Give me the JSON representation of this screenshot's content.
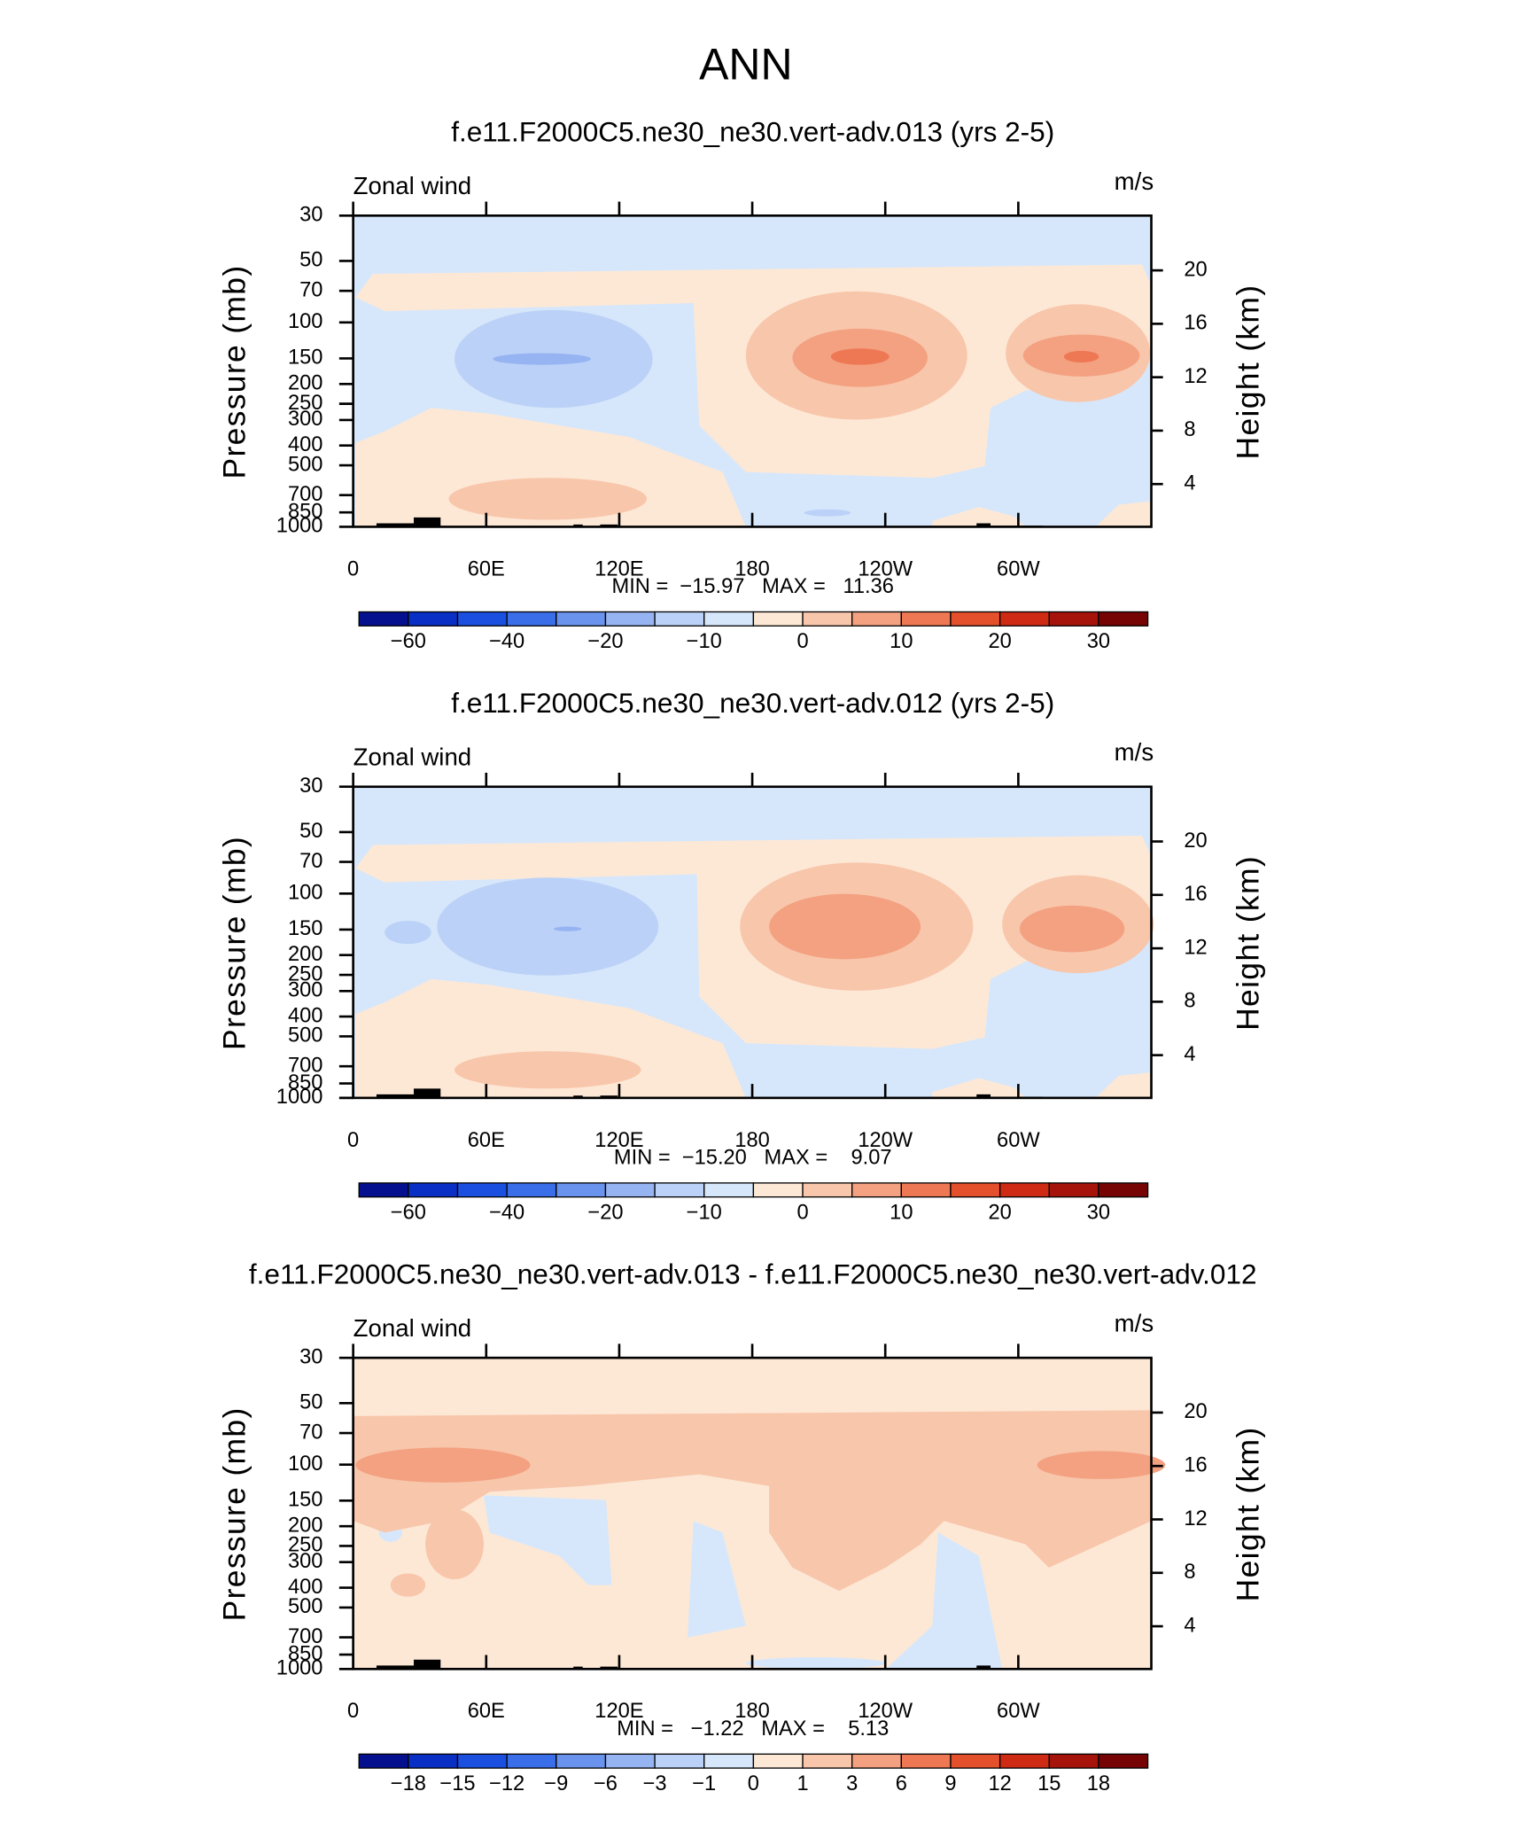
{
  "title": "ANN",
  "chart_data": [
    {
      "type": "contour",
      "title": "f.e11.F2000C5.ne30_ne30.vert-adv.013 (yrs 2-5)",
      "left_label": "Zonal wind",
      "right_label": "m/s",
      "ylabel": "Pressure (mb)",
      "y2label": "Height (km)",
      "xlim": [
        0,
        360
      ],
      "xticks": [
        0,
        {
          "value": 60,
          "label": "60E"
        },
        {
          "value": 120,
          "label": "120E"
        },
        180,
        {
          "value": 240,
          "label": "120W"
        },
        {
          "value": 300,
          "label": "60W"
        }
      ],
      "ylim": [
        1000,
        30
      ],
      "ylog": true,
      "yticks": [
        30,
        50,
        70,
        100,
        150,
        200,
        250,
        300,
        400,
        500,
        700,
        850,
        1000
      ],
      "y2lim": [
        0.8,
        24.1
      ],
      "y2ticks": [
        4,
        8,
        12,
        16,
        20
      ],
      "stats": "MIN =  −15.97   MAX =   11.36",
      "colorbar": {
        "colors": [
          "#05108f",
          "#0a2fc4",
          "#1a4fe0",
          "#3a6ee8",
          "#6a93ee",
          "#96b4f2",
          "#bcd1f7",
          "#d6e7fb",
          "#fde8d6",
          "#f8c6ab",
          "#f3a181",
          "#ee7853",
          "#e44f2c",
          "#cf2a14",
          "#a5130b",
          "#760404"
        ],
        "labels": [
          "−60",
          null,
          "−40",
          null,
          "−20",
          null,
          "−10",
          null,
          "0",
          null,
          "10",
          null,
          "20",
          null,
          "30"
        ]
      }
    },
    {
      "type": "contour",
      "title": "f.e11.F2000C5.ne30_ne30.vert-adv.012 (yrs 2-5)",
      "left_label": "Zonal wind",
      "right_label": "m/s",
      "ylabel": "Pressure (mb)",
      "y2label": "Height (km)",
      "xlim": [
        0,
        360
      ],
      "xticks": [
        0,
        {
          "value": 60,
          "label": "60E"
        },
        {
          "value": 120,
          "label": "120E"
        },
        180,
        {
          "value": 240,
          "label": "120W"
        },
        {
          "value": 300,
          "label": "60W"
        }
      ],
      "ylim": [
        1000,
        30
      ],
      "ylog": true,
      "yticks": [
        30,
        50,
        70,
        100,
        150,
        200,
        250,
        300,
        400,
        500,
        700,
        850,
        1000
      ],
      "y2lim": [
        0.8,
        24.1
      ],
      "y2ticks": [
        4,
        8,
        12,
        16,
        20
      ],
      "stats": "MIN =  −15.20   MAX =    9.07",
      "colorbar": {
        "colors": [
          "#05108f",
          "#0a2fc4",
          "#1a4fe0",
          "#3a6ee8",
          "#6a93ee",
          "#96b4f2",
          "#bcd1f7",
          "#d6e7fb",
          "#fde8d6",
          "#f8c6ab",
          "#f3a181",
          "#ee7853",
          "#e44f2c",
          "#cf2a14",
          "#a5130b",
          "#760404"
        ],
        "labels": [
          "−60",
          null,
          "−40",
          null,
          "−20",
          null,
          "−10",
          null,
          "0",
          null,
          "10",
          null,
          "20",
          null,
          "30"
        ]
      }
    },
    {
      "type": "contour",
      "title": "f.e11.F2000C5.ne30_ne30.vert-adv.013 - f.e11.F2000C5.ne30_ne30.vert-adv.012",
      "left_label": "Zonal wind",
      "right_label": "m/s",
      "ylabel": "Pressure (mb)",
      "y2label": "Height (km)",
      "xlim": [
        0,
        360
      ],
      "xticks": [
        0,
        {
          "value": 60,
          "label": "60E"
        },
        {
          "value": 120,
          "label": "120E"
        },
        180,
        {
          "value": 240,
          "label": "120W"
        },
        {
          "value": 300,
          "label": "60W"
        }
      ],
      "ylim": [
        1000,
        30
      ],
      "ylog": true,
      "yticks": [
        30,
        50,
        70,
        100,
        150,
        200,
        250,
        300,
        400,
        500,
        700,
        850,
        1000
      ],
      "y2lim": [
        0.8,
        24.1
      ],
      "y2ticks": [
        4,
        8,
        12,
        16,
        20
      ],
      "stats": "MIN =   −1.22   MAX =    5.13",
      "colorbar": {
        "colors": [
          "#05108f",
          "#0a2fc4",
          "#1a4fe0",
          "#3a6ee8",
          "#6a93ee",
          "#96b4f2",
          "#bcd1f7",
          "#d6e7fb",
          "#fde8d6",
          "#f8c6ab",
          "#f3a181",
          "#ee7853",
          "#e44f2c",
          "#cf2a14",
          "#a5130b",
          "#760404"
        ],
        "labels": [
          "−18",
          "−15",
          "−12",
          "−9",
          "−6",
          "−3",
          "−1",
          "0",
          "1",
          "3",
          "6",
          "9",
          "12",
          "15",
          "18"
        ]
      }
    }
  ]
}
